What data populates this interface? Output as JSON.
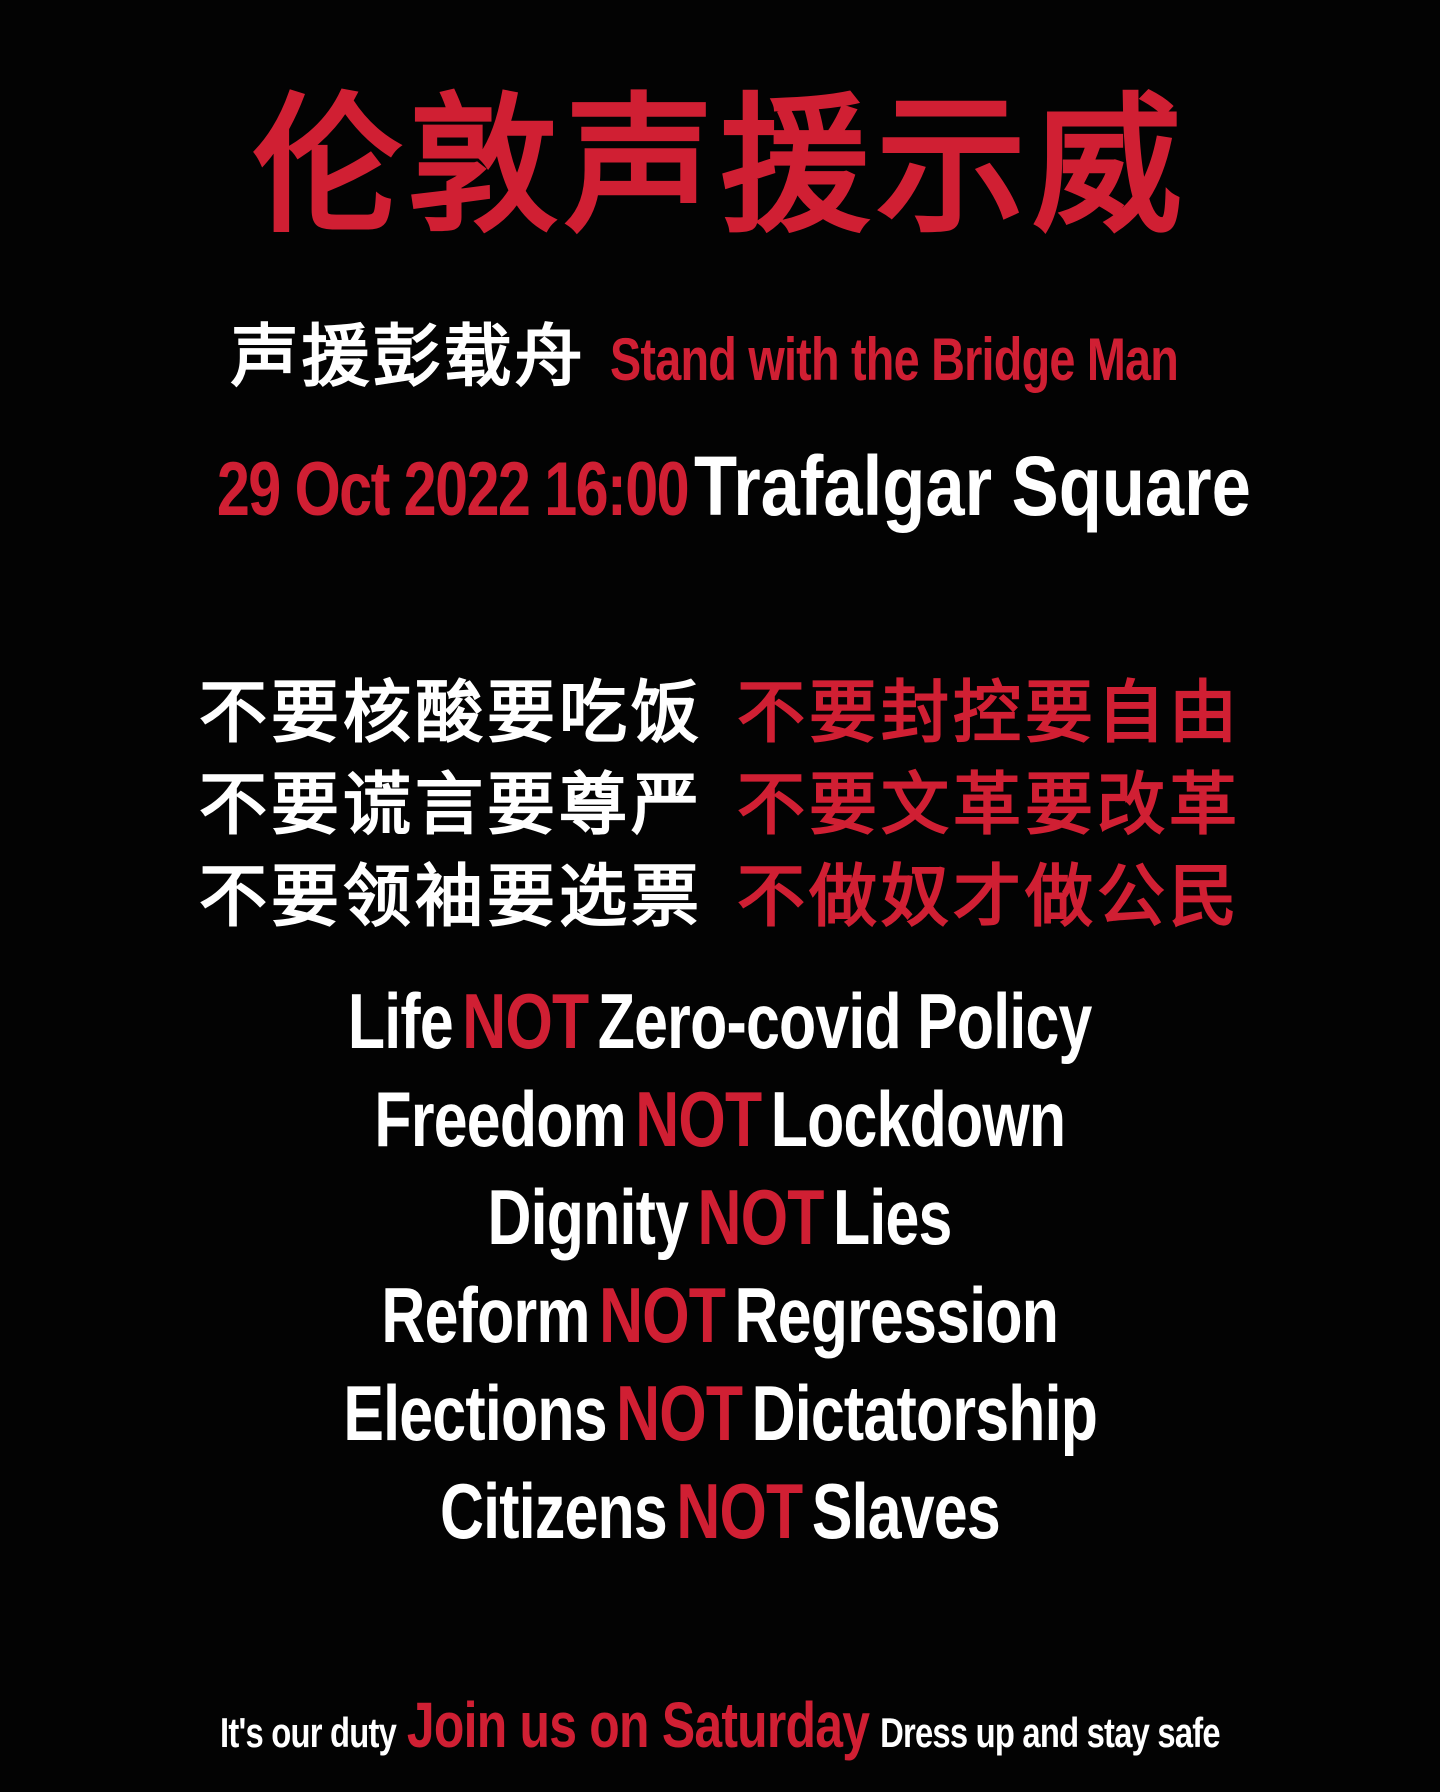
{
  "poster": {
    "title": "伦敦声援示威",
    "subtitle": {
      "chinese": "声援彭载舟",
      "english": "Stand with the Bridge Man"
    },
    "event": {
      "datetime": "29 Oct 2022 16:00",
      "location": "Trafalgar Square"
    },
    "chinese_slogans": [
      {
        "left": "不要核酸要吃饭",
        "right": "不要封控要自由"
      },
      {
        "left": "不要谎言要尊严",
        "right": "不要文革要改革"
      },
      {
        "left": "不要领袖要选票",
        "right": "不做奴才做公民"
      }
    ],
    "english_slogans": [
      {
        "before": "Life",
        "not": "NOT",
        "after": "Zero-covid Policy"
      },
      {
        "before": "Freedom",
        "not": "NOT",
        "after": "Lockdown"
      },
      {
        "before": "Dignity",
        "not": "NOT",
        "after": "Lies"
      },
      {
        "before": "Reform",
        "not": "NOT",
        "after": "Regression"
      },
      {
        "before": "Elections",
        "not": "NOT",
        "after": "Dictatorship"
      },
      {
        "before": "Citizens",
        "not": "NOT",
        "after": "Slaves"
      }
    ],
    "footer": {
      "left": "It's our duty",
      "center": "Join us on Saturday",
      "right": "Dress up and stay safe"
    },
    "colors": {
      "background": "#000000",
      "accent_red": "#d01f33",
      "text_white": "#ffffff"
    }
  }
}
